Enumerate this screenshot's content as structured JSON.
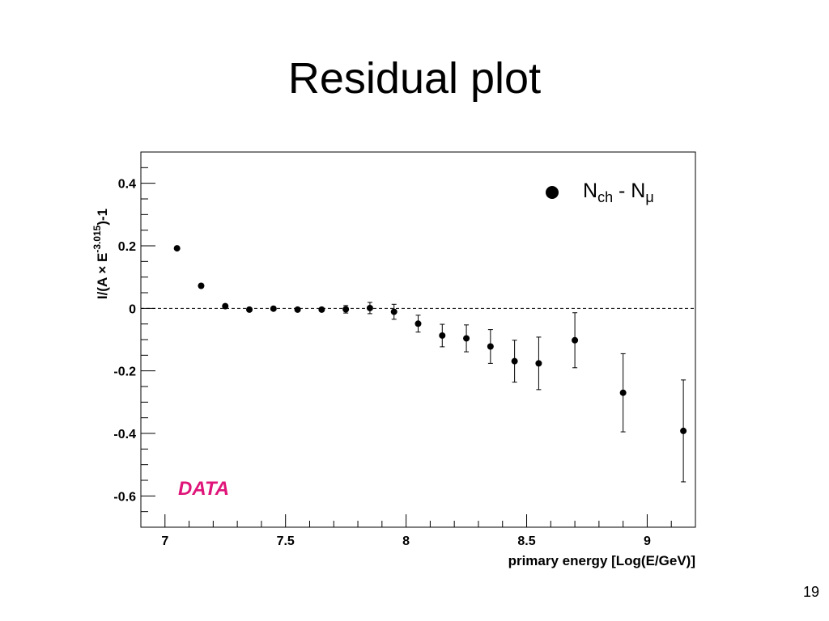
{
  "slide": {
    "title": "Residual plot",
    "page_number": "19"
  },
  "chart_data": {
    "type": "scatter",
    "title": "",
    "xlabel": "primary energy [Log(E/GeV)]",
    "ylabel": {
      "base": "I/(A × E",
      "superscript": "-3.015",
      "tail": ")-1"
    },
    "xlim": [
      6.9,
      9.2
    ],
    "ylim": [
      -0.7,
      0.5
    ],
    "x_ticks": [
      7,
      7.5,
      8,
      8.5,
      9
    ],
    "x_tick_labels": [
      "7",
      "7.5",
      "8",
      "8.5",
      "9"
    ],
    "y_ticks": [
      0.4,
      0.2,
      0,
      -0.2,
      -0.4,
      -0.6
    ],
    "y_tick_labels": [
      "0.4",
      "0.2",
      "0",
      "-0.2",
      "-0.4",
      "-0.6"
    ],
    "grid": false,
    "reference_line": {
      "y": 0,
      "style": "dashed"
    },
    "legend": {
      "placement": "top-right",
      "entries": [
        {
          "main": "N",
          "sub1": "ch",
          "mid": " - N",
          "sub2": "μ"
        }
      ]
    },
    "annotations": [
      {
        "text": "DATA",
        "color": "#e0157a",
        "placement": "bottom-left"
      }
    ],
    "series": [
      {
        "marker_color": "#000000",
        "points": [
          {
            "x": 7.05,
            "y": 0.192,
            "err": 0.003
          },
          {
            "x": 7.15,
            "y": 0.072,
            "err": 0.003
          },
          {
            "x": 7.25,
            "y": 0.007,
            "err": 0.003
          },
          {
            "x": 7.35,
            "y": -0.004,
            "err": 0.003
          },
          {
            "x": 7.45,
            "y": -0.001,
            "err": 0.003
          },
          {
            "x": 7.55,
            "y": -0.004,
            "err": 0.003
          },
          {
            "x": 7.65,
            "y": -0.004,
            "err": 0.004
          },
          {
            "x": 7.75,
            "y": -0.003,
            "err": 0.012
          },
          {
            "x": 7.85,
            "y": 0.001,
            "err": 0.018
          },
          {
            "x": 7.95,
            "y": -0.011,
            "err": 0.024
          },
          {
            "x": 8.05,
            "y": -0.049,
            "err": 0.027
          },
          {
            "x": 8.15,
            "y": -0.087,
            "err": 0.036
          },
          {
            "x": 8.25,
            "y": -0.096,
            "err": 0.043
          },
          {
            "x": 8.35,
            "y": -0.122,
            "err": 0.054
          },
          {
            "x": 8.45,
            "y": -0.169,
            "err": 0.067
          },
          {
            "x": 8.55,
            "y": -0.176,
            "err": 0.084
          },
          {
            "x": 8.7,
            "y": -0.102,
            "err": 0.088
          },
          {
            "x": 8.9,
            "y": -0.27,
            "err": 0.125
          },
          {
            "x": 9.15,
            "y": -0.392,
            "err": 0.163
          }
        ]
      }
    ]
  }
}
